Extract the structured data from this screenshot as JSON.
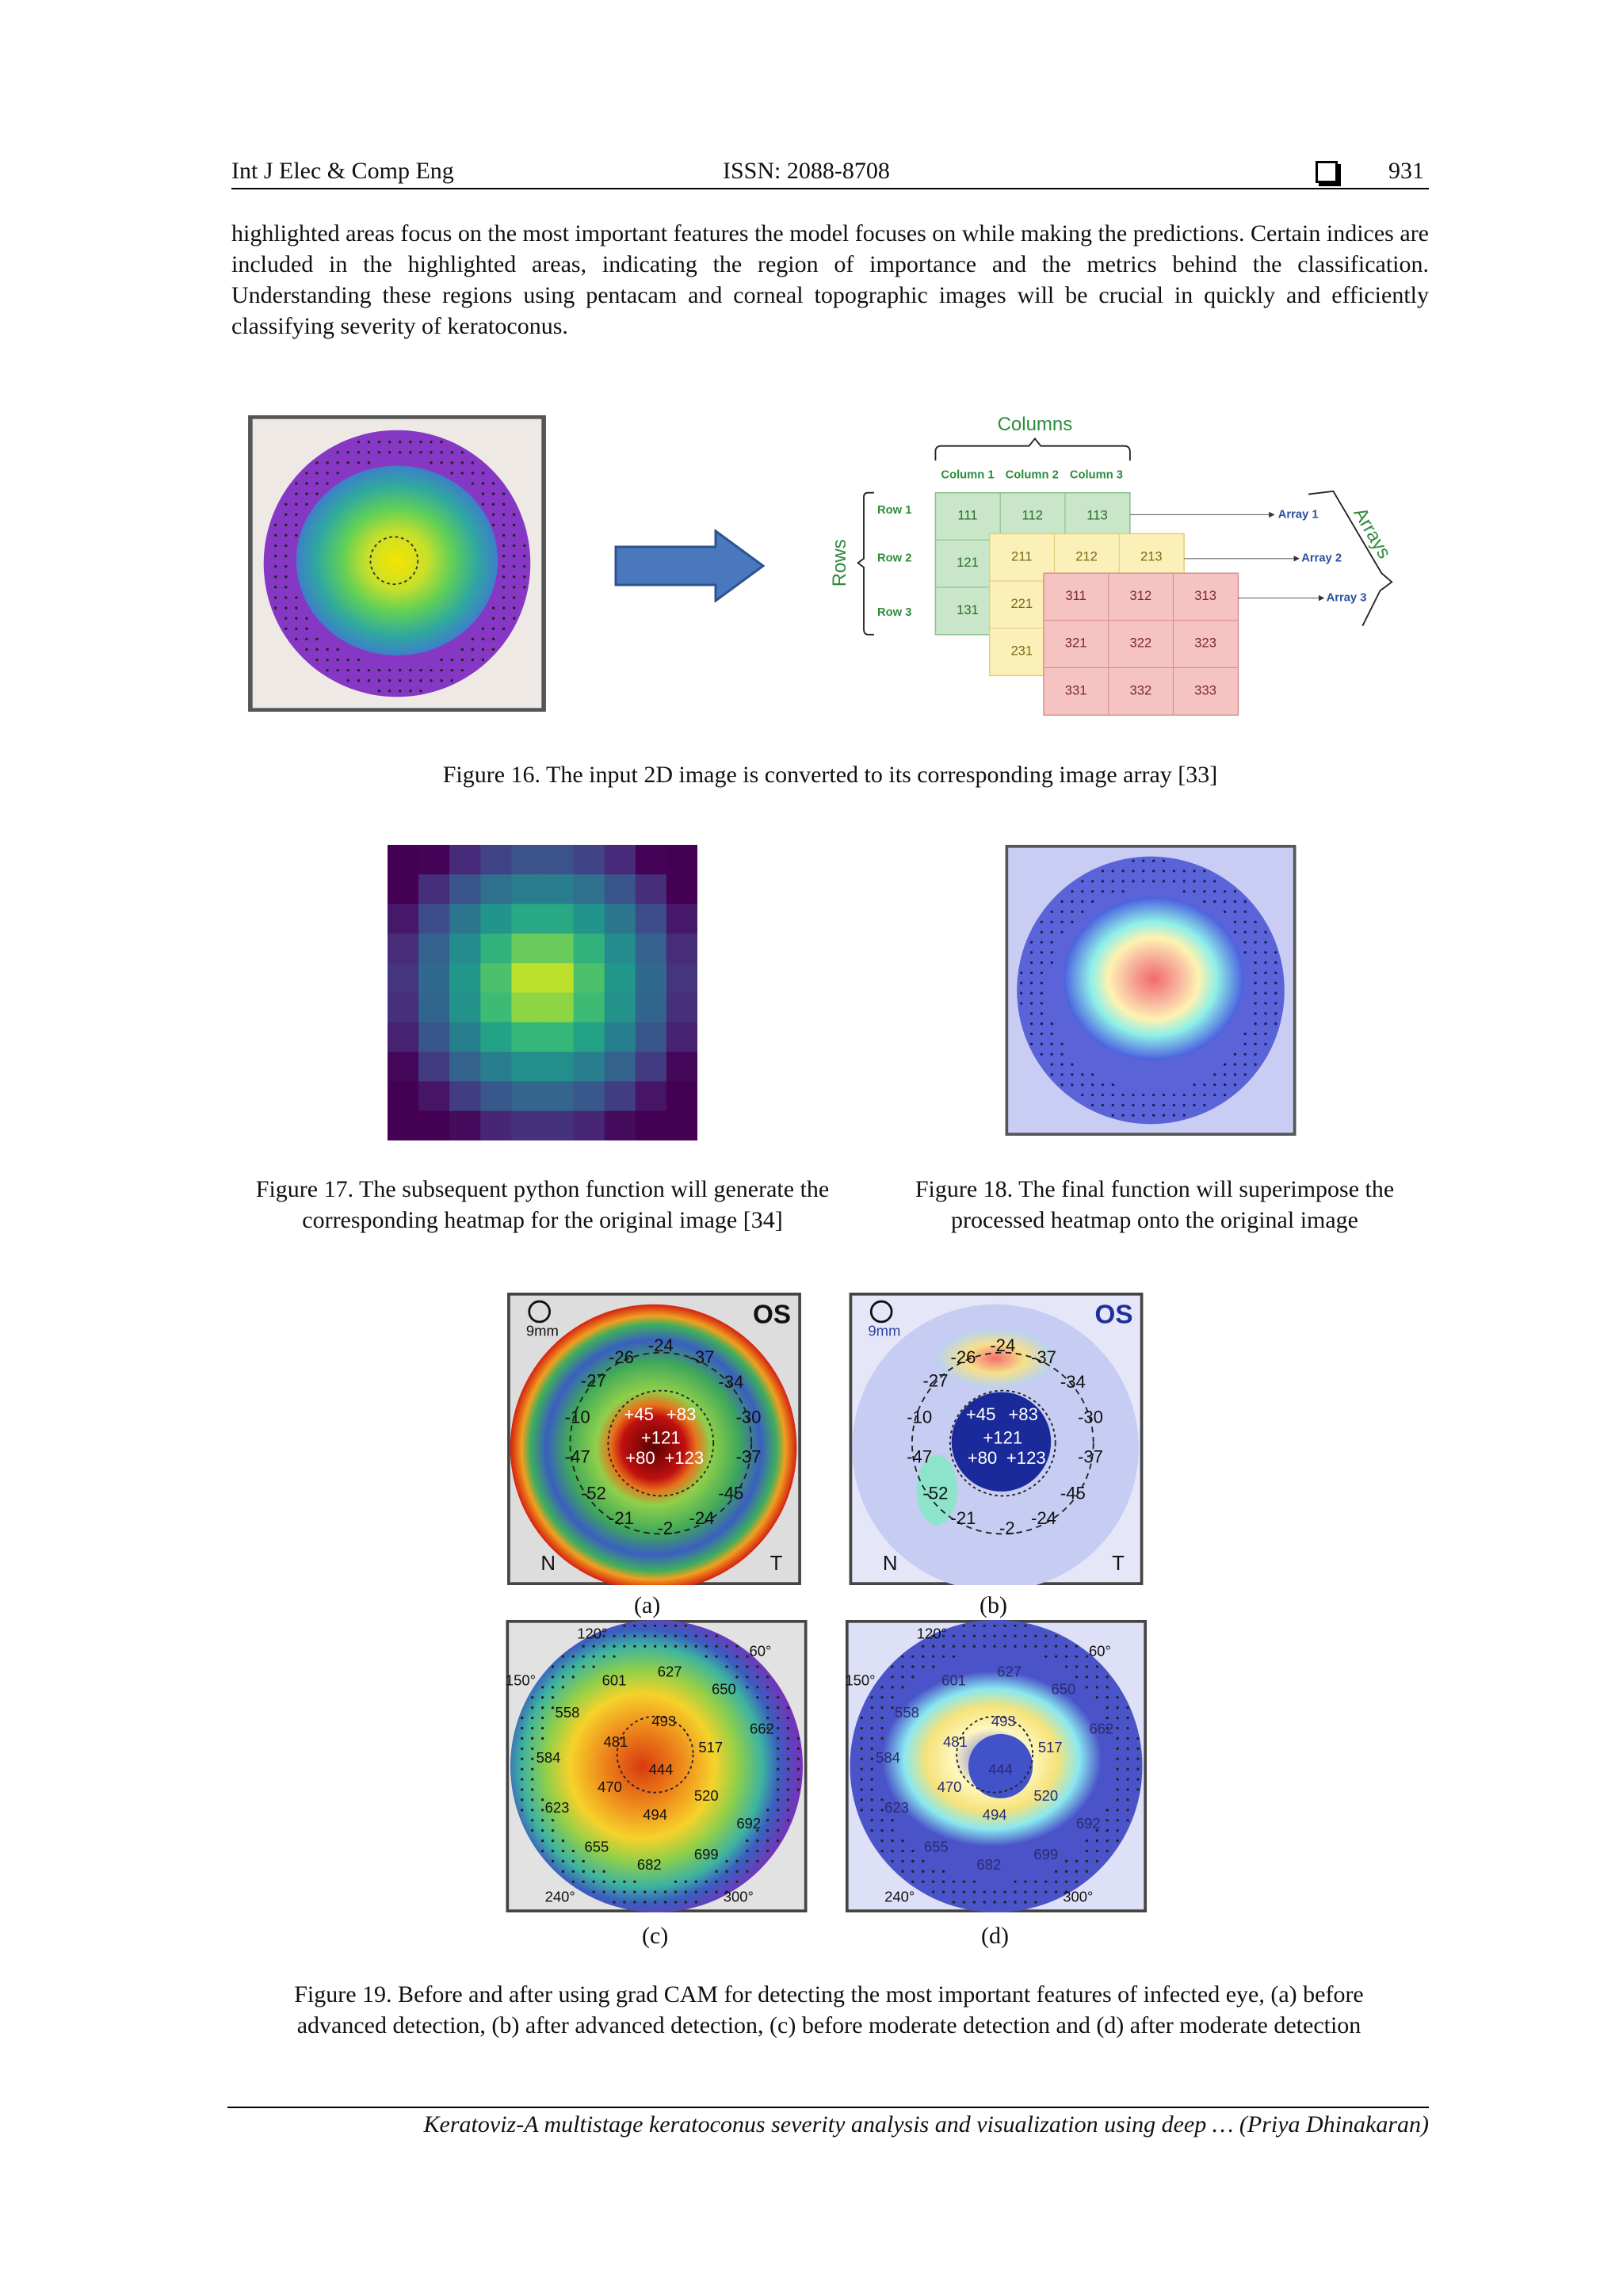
{
  "header": {
    "journal": "Int J Elec & Comp Eng",
    "issn": "ISSN: 2088-8708",
    "page": "931"
  },
  "body": "highlighted areas focus on the most important features the model focuses on while making the predictions. Certain indices are included in the highlighted areas, indicating the region of importance and the metrics behind the classification. Understanding these regions using pentacam and corneal topographic images will be crucial in quickly and efficiently classifying severity of keratoconus.",
  "figure16": {
    "caption": "Figure 16. The input 2D image is converted to its corresponding image array [33]",
    "diagram": {
      "columns_title": "Columns",
      "column_headers": [
        "Column 1",
        "Column 2",
        "Column 3"
      ],
      "rows_title": "Rows",
      "row_headers": [
        "Row 1",
        "Row 2",
        "Row 3"
      ],
      "arrays_title": "Arrays",
      "array_labels": [
        "Array 1",
        "Array 2",
        "Array 3"
      ],
      "arrays": [
        [
          "111",
          "112",
          "113",
          "121",
          "131"
        ],
        [
          "211",
          "212",
          "213",
          "221",
          "231"
        ],
        [
          "311",
          "312",
          "313",
          "321",
          "322",
          "323",
          "331",
          "332",
          "333"
        ]
      ]
    }
  },
  "figure17": {
    "caption": "Figure 17. The subsequent python function will generate the corresponding heatmap for the original image [34]"
  },
  "figure18": {
    "caption": "Figure 18. The final function will superimpose the processed heatmap onto the original image"
  },
  "figure19": {
    "caption": "Figure 19. Before and after using grad CAM for detecting the most important features of infected eye, (a) before advanced detection, (b) after advanced detection, (c) before moderate detection and (d) after moderate detection",
    "sub_labels": [
      "(a)",
      "(b)",
      "(c)",
      "(d)"
    ],
    "advanced_map": {
      "eye": "OS",
      "scale": "9mm",
      "nasal": "N",
      "temporal": "T",
      "values": [
        "-26",
        "-24",
        "-37",
        "-27",
        "-34",
        "-10",
        "-30",
        "+45",
        "+83",
        "+121",
        "+80",
        "+123",
        "-47",
        "-37",
        "-52",
        "-45",
        "-21",
        "-2",
        "-24"
      ]
    },
    "moderate_map": {
      "degrees": [
        "120°",
        "60°",
        "150°",
        "240°",
        "300°"
      ],
      "values": [
        "601",
        "627",
        "650",
        "558",
        "493",
        "662",
        "584",
        "481",
        "517",
        "444",
        "470",
        "520",
        "623",
        "494",
        "692",
        "655",
        "682",
        "699"
      ]
    }
  },
  "footer": "Keratoviz-A multistage keratoconus severity analysis and visualization using deep … (Priya Dhinakaran)"
}
